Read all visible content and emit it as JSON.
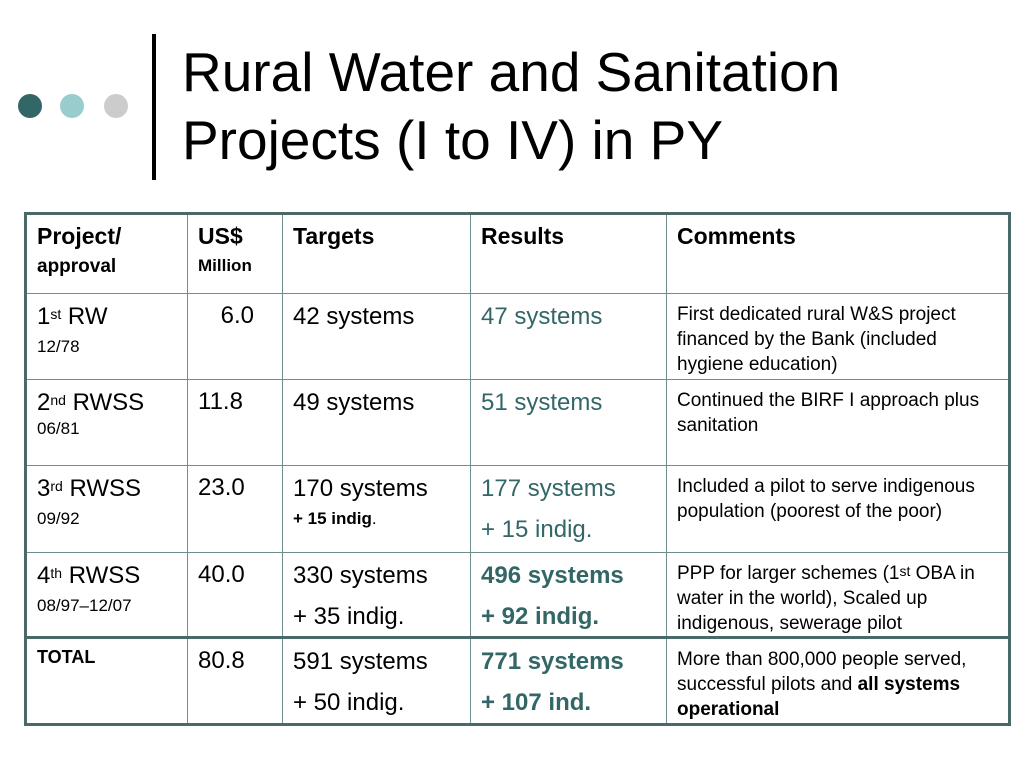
{
  "slide": {
    "title_line1": "Rural Water and Sanitation",
    "title_line2": "Projects (I to IV) in PY"
  },
  "colors": {
    "dot1": "#336666",
    "dot2": "#99cccc",
    "dot3": "#cccccc",
    "results_text": "#336666",
    "table_border": "#4a6a6a"
  },
  "table": {
    "headers": {
      "project": "Project/",
      "project_sub": "approval",
      "usd": "US$",
      "usd_sub": "Million",
      "targets": "Targets",
      "results": "Results",
      "comments": "Comments"
    },
    "rows": [
      {
        "ordinal": "1",
        "ordinal_sup": "st",
        "name": "RW",
        "date": "12/78",
        "usd": "6.0",
        "targets": "42 systems",
        "targets_extra": "",
        "results": "47 systems",
        "results_extra": "",
        "comment": "First dedicated rural W&S project financed by the Bank (included hygiene education)"
      },
      {
        "ordinal": "2",
        "ordinal_sup": "nd",
        "name": "RWSS",
        "date": "06/81",
        "usd": "11.8",
        "targets": "49 systems",
        "targets_extra": "",
        "results": "51 systems",
        "results_extra": "",
        "comment": "Continued the BIRF I approach plus sanitation"
      },
      {
        "ordinal": "3",
        "ordinal_sup": "rd",
        "name": "RWSS",
        "date": "09/92",
        "usd": "23.0",
        "targets": "170 systems",
        "targets_extra_bold": "+ 15 indig",
        "targets_extra_tail": ".",
        "results": "177 systems",
        "results_extra": "+ 15 indig.",
        "comment": "Included a pilot to serve indigenous population (poorest of the poor)"
      },
      {
        "ordinal": "4",
        "ordinal_sup": "th",
        "name": "RWSS",
        "date": "08/97–12/07",
        "usd": "40.0",
        "targets": "330 systems",
        "targets_extra": "+ 35 indig.",
        "results": "496 systems",
        "results_extra": "+ 92 indig.",
        "comment_pre": "PPP for larger schemes (1",
        "comment_sup": "st",
        "comment_post": " OBA in water in the world), Scaled up indigenous, sewerage pilot"
      }
    ],
    "total": {
      "label": "TOTAL",
      "usd": "80.8",
      "targets": "591 systems",
      "targets_extra": "+ 50 indig.",
      "results": "771 systems",
      "results_extra": "+ 107 ind.",
      "comment_pre": "More than 800,000 people served, successful pilots and ",
      "comment_bold": "all systems operational"
    }
  }
}
